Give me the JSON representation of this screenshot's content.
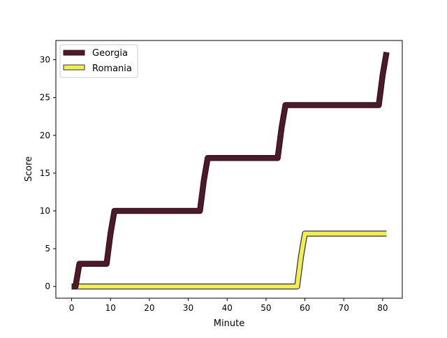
{
  "chart_data": {
    "type": "line",
    "title": "",
    "xlabel": "Minute",
    "ylabel": "Score",
    "xlim": [
      -4.05,
      85.05
    ],
    "ylim": [
      -1.55,
      32.55
    ],
    "xticks": [
      0,
      10,
      20,
      30,
      40,
      50,
      60,
      70,
      80
    ],
    "yticks": [
      0,
      5,
      10,
      15,
      20,
      25,
      30
    ],
    "grid": false,
    "legend": "top-left",
    "series": [
      {
        "name": "Georgia",
        "color": "#4e1a2a",
        "edge_color": "#301018",
        "x": [
          0,
          1,
          2,
          9,
          10,
          11,
          33,
          34,
          35,
          53,
          54,
          55,
          79,
          80,
          81
        ],
        "y": [
          0,
          0,
          3,
          3,
          7,
          10,
          10,
          14,
          17,
          17,
          21,
          24,
          24,
          28,
          31
        ]
      },
      {
        "name": "Romania",
        "color": "#f5f03a",
        "edge_color": "#2a2a8a",
        "x": [
          0,
          58,
          59,
          60,
          81
        ],
        "y": [
          0,
          0,
          4,
          7,
          7
        ]
      }
    ]
  }
}
